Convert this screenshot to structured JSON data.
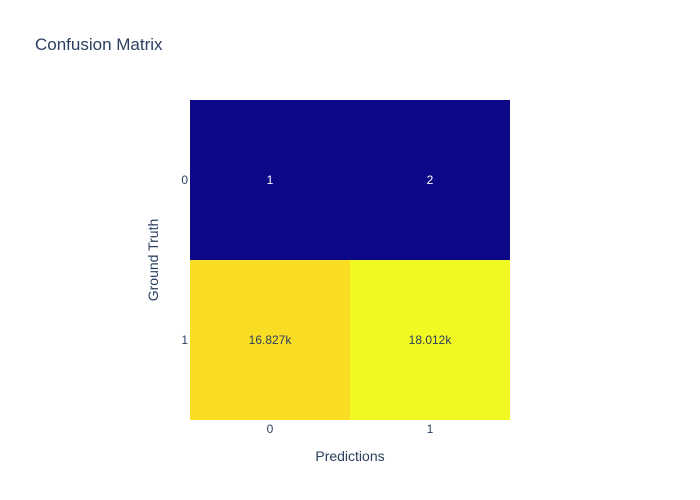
{
  "chart_data": {
    "type": "heatmap",
    "title": "Confusion Matrix",
    "xlabel": "Predictions",
    "ylabel": "Ground Truth",
    "x_categories": [
      "0",
      "1"
    ],
    "y_categories": [
      "0",
      "1"
    ],
    "z": [
      [
        1,
        2
      ],
      [
        16827,
        18012
      ]
    ],
    "text": [
      [
        "1",
        "2"
      ],
      [
        "16.827k",
        "18.012k"
      ]
    ],
    "colorscale": "plasma",
    "showscale": false
  },
  "colors": {
    "low": "#0d0887",
    "mid_high": "#f6da23",
    "high": "#f0f921",
    "text_on_dark": "#ffffff",
    "text_on_light": "#2a3f5f"
  }
}
